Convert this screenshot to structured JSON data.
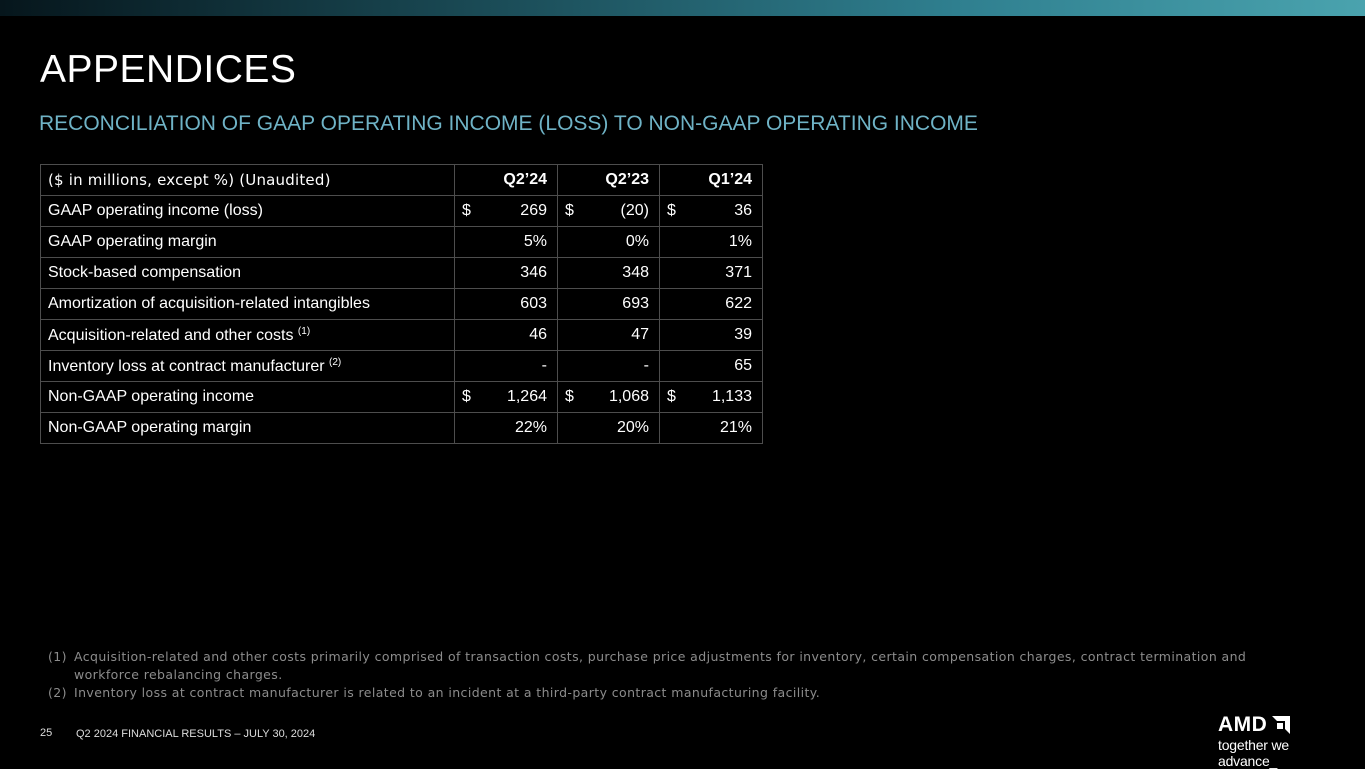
{
  "title": "APPENDICES",
  "subtitle": "RECONCILIATION OF GAAP OPERATING INCOME (LOSS) TO NON-GAAP OPERATING INCOME",
  "table": {
    "header": [
      "($ in millions, except %) (Unaudited)",
      "Q2’24",
      "Q2’23",
      "Q1’24"
    ],
    "rows": [
      {
        "label": "GAAP operating income (loss)",
        "currency": "$",
        "values": [
          "269",
          "(20)",
          "36"
        ]
      },
      {
        "label": "GAAP operating margin",
        "values": [
          "5%",
          "0%",
          "1%"
        ]
      },
      {
        "label": "Stock-based compensation",
        "values": [
          "346",
          "348",
          "371"
        ]
      },
      {
        "label": "Amortization of acquisition-related intangibles",
        "values": [
          "603",
          "693",
          "622"
        ]
      },
      {
        "label": "Acquisition-related and other costs",
        "note": "(1)",
        "values": [
          "46",
          "47",
          "39"
        ]
      },
      {
        "label": "Inventory loss at contract manufacturer",
        "note": "(2)",
        "values": [
          "-",
          "-",
          "65"
        ]
      },
      {
        "label": "Non-GAAP operating income",
        "currency": "$",
        "values": [
          "1,264",
          "1,068",
          "1,133"
        ]
      },
      {
        "label": "Non-GAAP operating margin",
        "values": [
          "22%",
          "20%",
          "21%"
        ]
      }
    ]
  },
  "footnotes": [
    {
      "num": "(1)",
      "text": "Acquisition-related and other costs primarily comprised of transaction costs, purchase price adjustments for inventory, certain compensation charges, contract termination and workforce rebalancing charges."
    },
    {
      "num": "(2)",
      "text": "Inventory loss at contract manufacturer is related to an incident at a third-party contract manufacturing facility."
    }
  ],
  "page_number": "25",
  "footer_text": "Q2 2024 FINANCIAL RESULTS – JULY 30, 2024",
  "logo": {
    "wordmark": "AMD",
    "tagline": "together we advance_",
    "icon": "amd-arrow-icon"
  },
  "colors": {
    "background": "#000000",
    "subtitle": "#6fb3c6",
    "border": "#4d4d4d",
    "footnote": "#8c8c8c"
  }
}
